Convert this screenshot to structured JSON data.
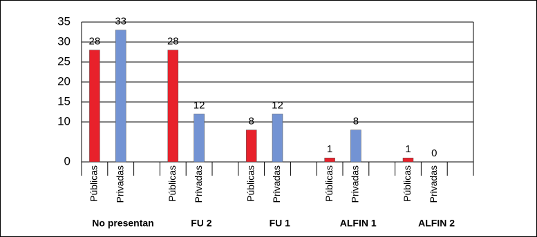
{
  "chart_data": {
    "type": "grouped-bar",
    "categories": [
      "No presentan",
      "FU 2",
      "FU 1",
      "ALFIN 1",
      "ALFIN 2"
    ],
    "series": [
      {
        "name": "Públicas",
        "color": "#e8212b",
        "values": [
          28,
          28,
          8,
          1,
          1
        ]
      },
      {
        "name": "Privadas",
        "color": "#7393d3",
        "values": [
          33,
          12,
          12,
          8,
          0
        ]
      }
    ],
    "ylim": [
      0,
      35
    ],
    "yticks": [
      0,
      10,
      15,
      20,
      25,
      30,
      35
    ],
    "grid": true
  }
}
